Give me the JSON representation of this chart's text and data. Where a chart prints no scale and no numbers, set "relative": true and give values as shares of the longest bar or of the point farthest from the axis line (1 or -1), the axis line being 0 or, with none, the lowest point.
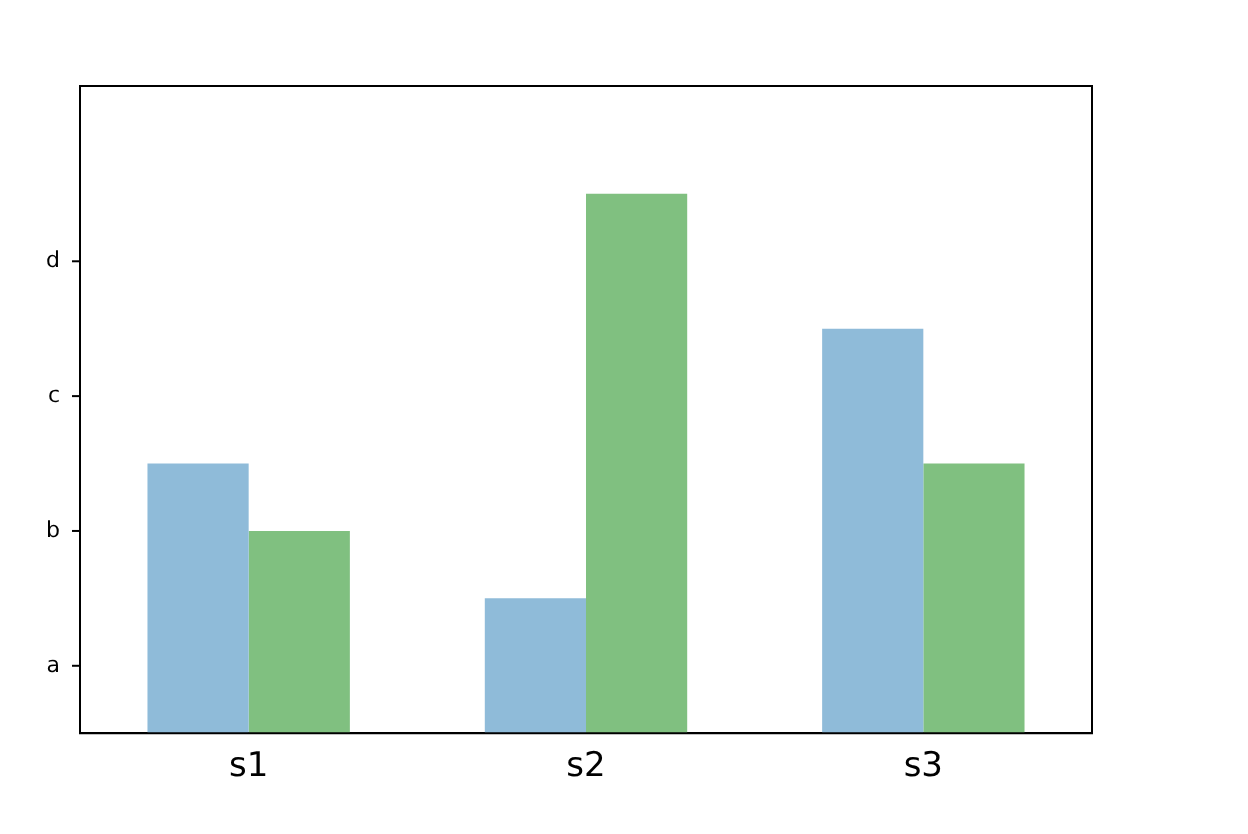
{
  "chart_data": {
    "type": "bar",
    "categories": [
      "s1",
      "s2",
      "s3"
    ],
    "series": [
      {
        "color": "#8fbbd9",
        "values": [
          0.5,
          0.25,
          0.75
        ]
      },
      {
        "color": "#80c080",
        "values": [
          0.375,
          1,
          0.5
        ]
      }
    ],
    "relative": true,
    "annotations": [
      "a",
      "b",
      "c",
      "d"
    ],
    "grid": false,
    "legend": false
  }
}
